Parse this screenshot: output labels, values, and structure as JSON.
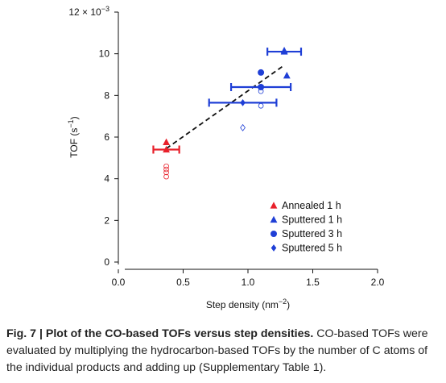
{
  "chart_data": {
    "type": "scatter",
    "title": "",
    "xlabel": "Step density (nm",
    "xlabel_sup": "−2",
    "xlabel_suffix": ")",
    "ylabel": "TOF (s",
    "ylabel_sup": "−1",
    "ylabel_suffix": ")",
    "y_multiplier": "12 × 10",
    "y_multiplier_sup": "−3",
    "xlim": [
      0.0,
      2.0
    ],
    "ylim": [
      0,
      12
    ],
    "xticks": [
      {
        "v": 0.0,
        "label": "0.0"
      },
      {
        "v": 0.5,
        "label": "0.5"
      },
      {
        "v": 1.0,
        "label": "1.0"
      },
      {
        "v": 1.5,
        "label": "1.5"
      },
      {
        "v": 2.0,
        "label": "2.0"
      }
    ],
    "yticks": [
      {
        "v": 0,
        "label": "0"
      },
      {
        "v": 2,
        "label": "2"
      },
      {
        "v": 4,
        "label": "4"
      },
      {
        "v": 6,
        "label": "6"
      },
      {
        "v": 8,
        "label": "8"
      },
      {
        "v": 10,
        "label": "10"
      }
    ],
    "grid": false,
    "legend_position": "bottom-right",
    "series": [
      {
        "name": "Annealed  1 h",
        "marker": "triangle",
        "color": "#e8202a",
        "points": [
          {
            "x": 0.37,
            "y": 5.75
          }
        ],
        "mean": {
          "x": 0.37,
          "y": 5.4,
          "xerr": 0.1
        },
        "open_points": [
          {
            "x": 0.37,
            "y": 4.6
          },
          {
            "x": 0.37,
            "y": 4.45
          },
          {
            "x": 0.37,
            "y": 4.3
          },
          {
            "x": 0.37,
            "y": 4.1
          }
        ]
      },
      {
        "name": "Sputtered 1 h",
        "marker": "triangle",
        "color": "#1f3fd6",
        "points": [
          {
            "x": 1.28,
            "y": 10.15
          },
          {
            "x": 1.3,
            "y": 8.95
          }
        ],
        "mean": {
          "x": 1.28,
          "y": 10.1,
          "xerr": 0.13
        },
        "open_points": []
      },
      {
        "name": "Sputtered 3 h",
        "marker": "circle",
        "color": "#1f3fd6",
        "points": [
          {
            "x": 1.1,
            "y": 9.1
          }
        ],
        "mean": {
          "x": 1.1,
          "y": 8.4,
          "xerr": 0.23
        },
        "open_points": [
          {
            "x": 1.1,
            "y": 8.2
          },
          {
            "x": 1.1,
            "y": 7.5
          }
        ]
      },
      {
        "name": "Sputtered 5 h",
        "marker": "diamond",
        "color": "#1f3fd6",
        "points": [],
        "mean": {
          "x": 0.96,
          "y": 7.65,
          "xerr": 0.26
        },
        "open_points": [
          {
            "x": 0.96,
            "y": 6.45
          }
        ]
      }
    ],
    "fit_line": {
      "x": [
        0.37,
        1.28
      ],
      "y": [
        5.45,
        9.45
      ],
      "style": "dashed",
      "color": "#111111"
    }
  },
  "caption": {
    "bold": "Fig. 7 | Plot of the CO-based TOFs versus step densities.",
    "text": " CO-based TOFs were evaluated by multiplying the hydrocarbon-based TOFs by the number of C atoms of the individual products and adding up (Supplementary Table 1)."
  }
}
